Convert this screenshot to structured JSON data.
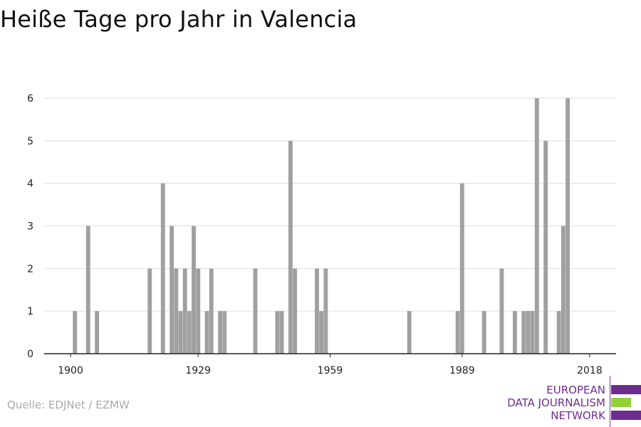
{
  "chart_data": {
    "type": "bar",
    "title": "Heiße Tage pro Jahr in Valencia",
    "xlabel": "",
    "ylabel": "",
    "xlim": [
      1894,
      2024
    ],
    "ylim": [
      0,
      6
    ],
    "y_ticks": [
      0,
      1,
      2,
      3,
      4,
      5,
      6
    ],
    "x_ticks": [
      1900,
      1929,
      1959,
      1989,
      2018
    ],
    "grid": "horizontal",
    "legend": "none",
    "bar_color": "#a0a0a0",
    "series": [
      {
        "x": [
          1901,
          1904,
          1906,
          1918,
          1921,
          1923,
          1924,
          1925,
          1926,
          1927,
          1928,
          1929,
          1931,
          1932,
          1934,
          1935,
          1942,
          1947,
          1948,
          1950,
          1951,
          1956,
          1957,
          1958,
          1977,
          1988,
          1989,
          1994,
          1998,
          2001,
          2003,
          2004,
          2005,
          2006,
          2008,
          2011,
          2012,
          2013,
          2018
        ],
        "values": [
          1,
          3,
          1,
          2,
          4,
          3,
          2,
          1,
          2,
          1,
          3,
          2,
          1,
          2,
          1,
          1,
          2,
          1,
          1,
          5,
          2,
          2,
          1,
          2,
          1,
          1,
          4,
          1,
          2,
          1,
          1,
          1,
          1,
          6,
          5,
          1,
          3,
          6,
          0
        ]
      }
    ]
  },
  "source_text": "Quelle: EDJNet / EZMW",
  "logo": {
    "line1": "EUROPEAN",
    "line2": "DATA JOURNALISM",
    "line3": "NETWORK",
    "purple": "#6e2c8f",
    "green": "#93d035"
  }
}
